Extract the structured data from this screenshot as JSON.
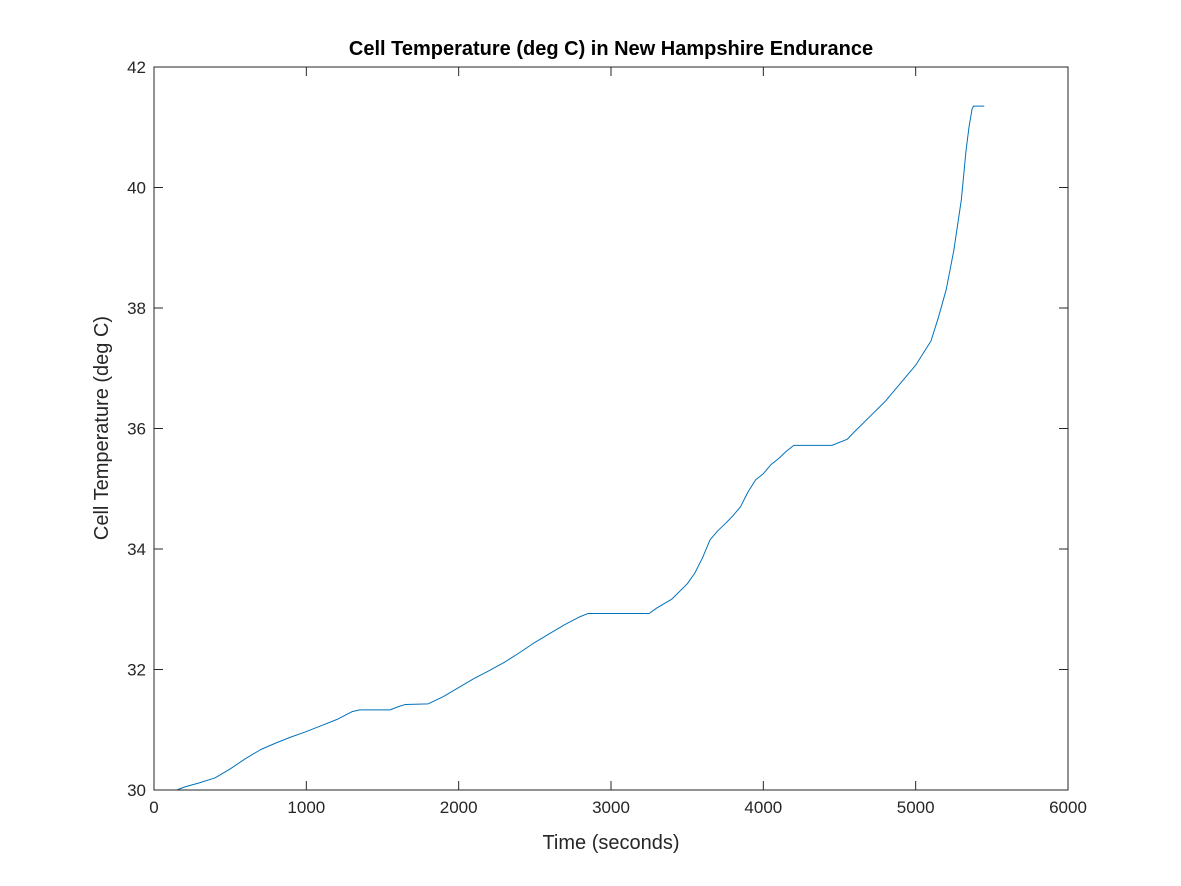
{
  "chart_data": {
    "type": "line",
    "title": "Cell Temperature (deg C) in New Hampshire Endurance",
    "xlabel": "Time (seconds)",
    "ylabel": "Cell Temperature (deg C)",
    "xlim": [
      0,
      6000
    ],
    "ylim": [
      30,
      42
    ],
    "xticks": [
      0,
      1000,
      2000,
      3000,
      4000,
      5000,
      6000
    ],
    "yticks": [
      30,
      32,
      34,
      36,
      38,
      40,
      42
    ],
    "xtick_labels": [
      "0",
      "1000",
      "2000",
      "3000",
      "4000",
      "5000",
      "6000"
    ],
    "ytick_labels": [
      "30",
      "32",
      "34",
      "36",
      "38",
      "40",
      "42"
    ],
    "grid": false,
    "legend": "none",
    "series": [
      {
        "color": "#0072BD",
        "x": [
          0,
          150,
          200,
          300,
          400,
          500,
          600,
          700,
          800,
          900,
          1000,
          1100,
          1200,
          1300,
          1350,
          1550,
          1600,
          1650,
          1800,
          1900,
          2000,
          2100,
          2200,
          2300,
          2400,
          2500,
          2600,
          2700,
          2800,
          2850,
          3250,
          3300,
          3400,
          3500,
          3550,
          3600,
          3650,
          3700,
          3750,
          3800,
          3850,
          3900,
          3950,
          4000,
          4050,
          4100,
          4150,
          4200,
          4250,
          4450,
          4550,
          4600,
          4700,
          4800,
          4900,
          5000,
          5100,
          5150,
          5200,
          5250,
          5300,
          5330,
          5350,
          5370,
          5380,
          5400,
          5450
        ],
        "y": [
          30.0,
          30.0,
          30.05,
          30.12,
          30.2,
          30.35,
          30.52,
          30.67,
          30.78,
          30.88,
          30.97,
          31.07,
          31.17,
          31.3,
          31.33,
          31.33,
          31.38,
          31.42,
          31.43,
          31.55,
          31.7,
          31.85,
          31.98,
          32.12,
          32.28,
          32.45,
          32.6,
          32.75,
          32.88,
          32.93,
          32.93,
          33.02,
          33.17,
          33.42,
          33.6,
          33.85,
          34.15,
          34.3,
          34.42,
          34.55,
          34.7,
          34.95,
          35.15,
          35.25,
          35.4,
          35.5,
          35.62,
          35.72,
          35.72,
          35.72,
          35.82,
          35.95,
          36.2,
          36.45,
          36.75,
          37.05,
          37.45,
          37.85,
          38.3,
          38.95,
          39.8,
          40.6,
          41.0,
          41.3,
          41.35,
          41.35,
          41.35
        ]
      }
    ]
  }
}
